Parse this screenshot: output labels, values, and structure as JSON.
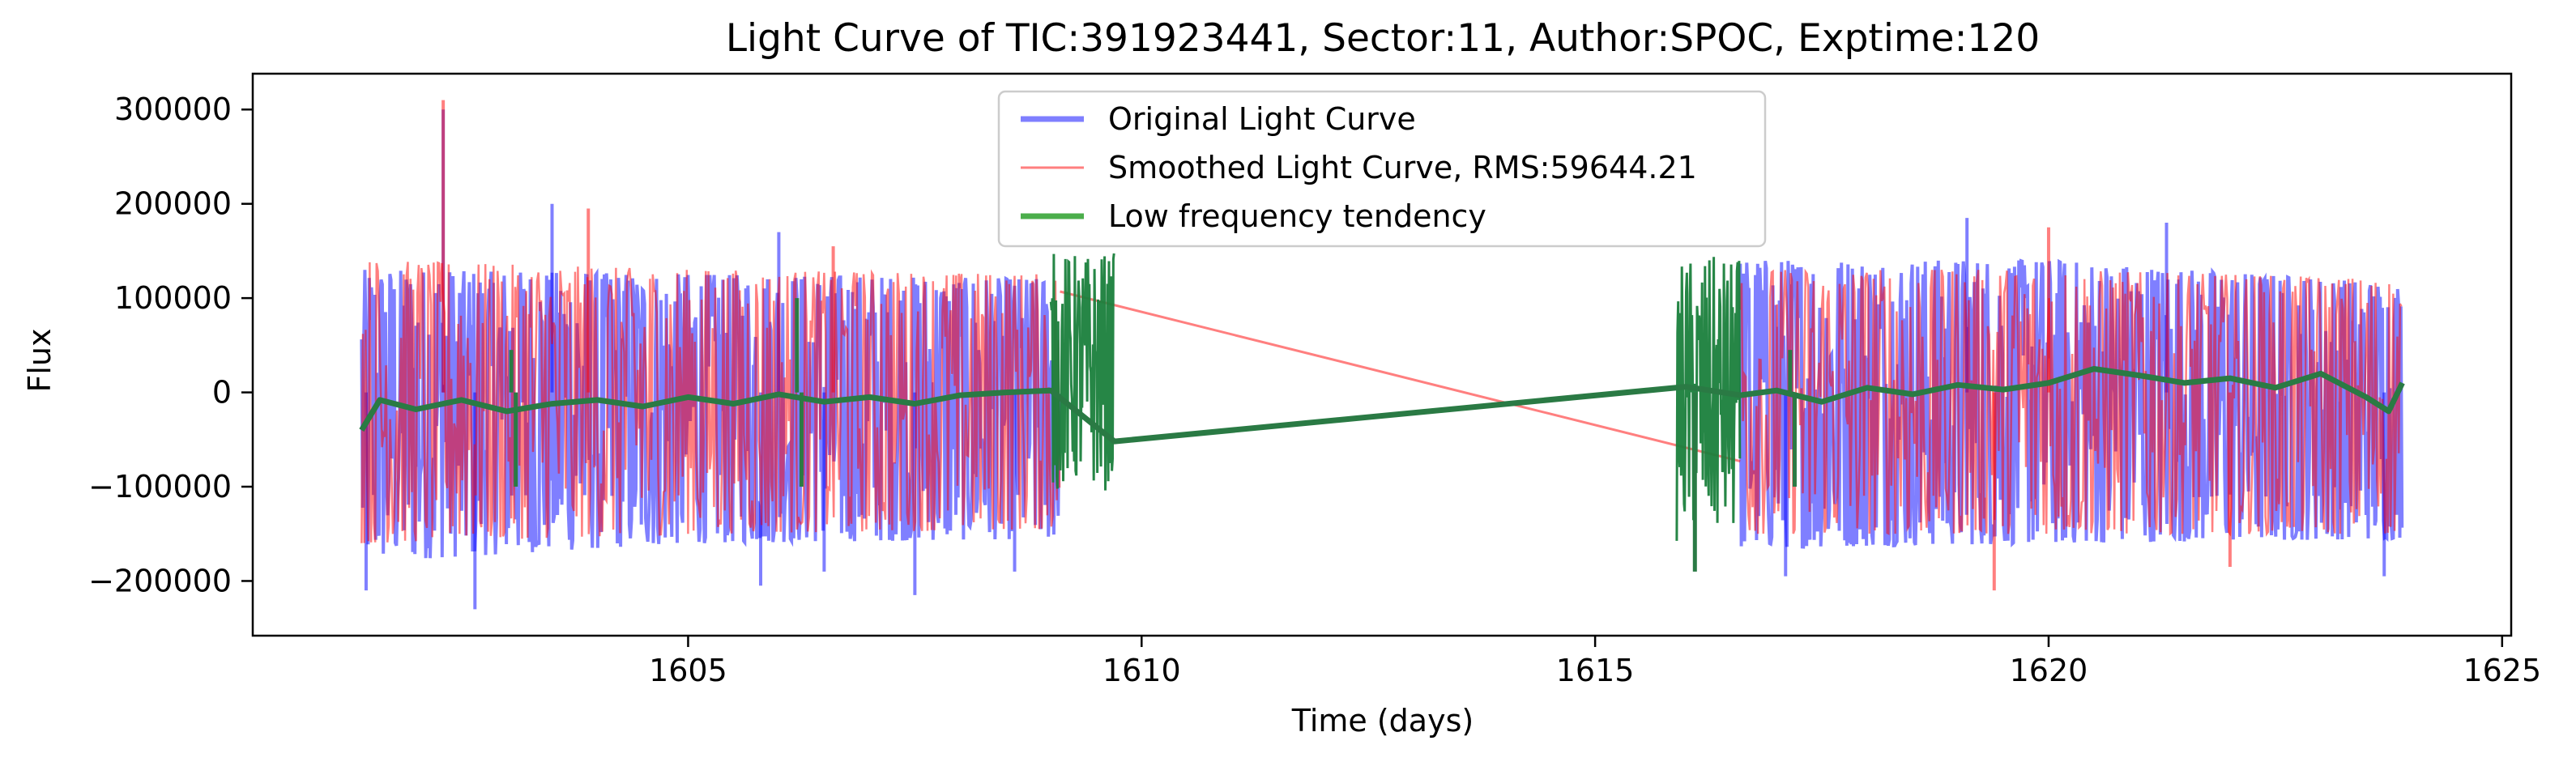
{
  "chart_data": {
    "type": "line",
    "title": "Light Curve of TIC:391923441, Sector:11, Author:SPOC, Exptime:120",
    "xlabel": "Time (days)",
    "ylabel": "Flux",
    "xlim": [
      1600.2,
      1625.1
    ],
    "ylim": [
      -258000,
      338000
    ],
    "x_ticks": [
      1605,
      1610,
      1615,
      1620,
      1625
    ],
    "y_ticks": [
      -200000,
      -100000,
      0,
      100000,
      200000,
      300000
    ],
    "x_tick_labels": [
      "1605",
      "1610",
      "1615",
      "1620",
      "1625"
    ],
    "y_tick_labels": [
      "−200000",
      "−100000",
      "0",
      "100000",
      "200000",
      "300000"
    ],
    "legend_position": "upper center",
    "grid": false,
    "segments": [
      {
        "start": 1601.4,
        "end": 1609.1
      },
      {
        "start": 1616.6,
        "end": 1623.9
      }
    ],
    "series": [
      {
        "name": "Original Light Curve",
        "color": "#0000ff",
        "alpha": 0.5,
        "style": "noise",
        "envelope_upper": [
          [
            1601.4,
            130000
          ],
          [
            1605,
            125000
          ],
          [
            1609.1,
            120000
          ],
          [
            1616.6,
            140000
          ],
          [
            1620,
            140000
          ],
          [
            1623.9,
            115000
          ]
        ],
        "envelope_lower": [
          [
            1601.4,
            -180000
          ],
          [
            1605,
            -160000
          ],
          [
            1609.1,
            -155000
          ],
          [
            1616.6,
            -165000
          ],
          [
            1620,
            -160000
          ],
          [
            1623.9,
            -155000
          ]
        ],
        "spikes": [
          [
            1601.45,
            -210000
          ],
          [
            1602.3,
            300000
          ],
          [
            1602.65,
            -230000
          ],
          [
            1603.5,
            200000
          ],
          [
            1605.8,
            -205000
          ],
          [
            1606.0,
            170000
          ],
          [
            1606.5,
            -190000
          ],
          [
            1607.5,
            -215000
          ],
          [
            1608.6,
            -190000
          ],
          [
            1617.1,
            -195000
          ],
          [
            1619.1,
            185000
          ],
          [
            1621.3,
            180000
          ],
          [
            1623.7,
            -195000
          ]
        ]
      },
      {
        "name": "Smoothed Light Curve, RMS:59644.21",
        "color": "#ff0000",
        "alpha": 0.5,
        "style": "noise",
        "envelope_upper": [
          [
            1601.4,
            140000
          ],
          [
            1605,
            130000
          ],
          [
            1609.1,
            125000
          ],
          [
            1616.6,
            130000
          ],
          [
            1620,
            130000
          ],
          [
            1623.9,
            120000
          ]
        ],
        "envelope_lower": [
          [
            1601.4,
            -160000
          ],
          [
            1605,
            -150000
          ],
          [
            1609.1,
            -145000
          ],
          [
            1616.6,
            -150000
          ],
          [
            1620,
            -150000
          ],
          [
            1623.9,
            -150000
          ]
        ],
        "bridge": [
          [
            1609.1,
            107000
          ],
          [
            1616.6,
            -73000
          ]
        ],
        "spikes": [
          [
            1602.3,
            310000
          ],
          [
            1603.9,
            195000
          ],
          [
            1606.6,
            155000
          ],
          [
            1619.4,
            -210000
          ],
          [
            1620.0,
            175000
          ],
          [
            1622.0,
            -185000
          ]
        ]
      },
      {
        "name": "Low frequency tendency",
        "color": "#2ca02c",
        "alpha": 0.85,
        "style": "trend",
        "trend": [
          [
            1601.4,
            -40000
          ],
          [
            1601.6,
            -8000
          ],
          [
            1602.0,
            -18000
          ],
          [
            1602.5,
            -8000
          ],
          [
            1603.0,
            -20000
          ],
          [
            1603.5,
            -12000
          ],
          [
            1604.0,
            -8000
          ],
          [
            1604.5,
            -15000
          ],
          [
            1605.0,
            -5000
          ],
          [
            1605.5,
            -12000
          ],
          [
            1606.0,
            -2000
          ],
          [
            1606.5,
            -10000
          ],
          [
            1607.0,
            -5000
          ],
          [
            1607.5,
            -12000
          ],
          [
            1608.0,
            -3000
          ],
          [
            1608.5,
            0
          ],
          [
            1609.0,
            2000
          ],
          [
            1609.7,
            -52000
          ],
          [
            1616.0,
            6000
          ],
          [
            1616.6,
            -3000
          ],
          [
            1617.0,
            2000
          ],
          [
            1617.5,
            -10000
          ],
          [
            1618.0,
            5000
          ],
          [
            1618.5,
            -2000
          ],
          [
            1619.0,
            8000
          ],
          [
            1619.5,
            3000
          ],
          [
            1620.0,
            10000
          ],
          [
            1620.5,
            25000
          ],
          [
            1621.0,
            18000
          ],
          [
            1621.5,
            10000
          ],
          [
            1622.0,
            15000
          ],
          [
            1622.5,
            5000
          ],
          [
            1623.0,
            20000
          ],
          [
            1623.5,
            -5000
          ],
          [
            1623.75,
            -20000
          ],
          [
            1623.9,
            10000
          ]
        ],
        "dense_bursts": [
          {
            "start": 1609.0,
            "end": 1609.7,
            "upper": 150000,
            "lower": -105000
          },
          {
            "start": 1615.9,
            "end": 1616.6,
            "upper": 145000,
            "lower": -160000
          }
        ],
        "spikes": [
          [
            1603.05,
            45000
          ],
          [
            1603.1,
            -100000
          ],
          [
            1606.2,
            100000
          ],
          [
            1606.25,
            -100000
          ],
          [
            1617.15,
            45000
          ],
          [
            1617.2,
            -100000
          ],
          [
            1616.1,
            -190000
          ]
        ]
      }
    ]
  }
}
